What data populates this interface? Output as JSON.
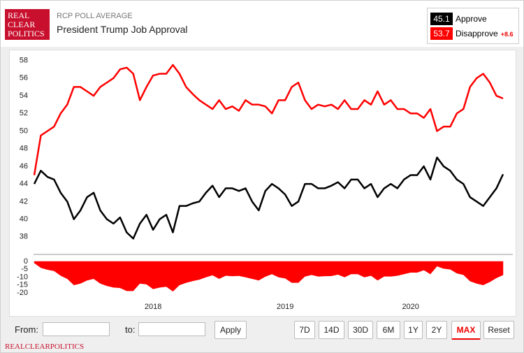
{
  "header": {
    "logo": [
      "REAL",
      "CLEAR",
      "POLITICS"
    ],
    "subtitle": "RCP POLL AVERAGE",
    "title": "President Trump Job Approval"
  },
  "chart_data": {
    "type": "line",
    "categories": [
      null,
      null,
      null,
      null,
      null,
      null,
      null,
      null,
      null,
      null,
      null,
      null,
      null,
      null,
      null,
      null,
      null,
      null,
      "2018",
      null,
      null,
      null,
      null,
      null,
      null,
      null,
      null,
      null,
      null,
      null,
      null,
      null,
      null,
      null,
      null,
      null,
      null,
      null,
      "2019",
      null,
      null,
      null,
      null,
      null,
      null,
      null,
      null,
      null,
      null,
      null,
      null,
      null,
      null,
      null,
      null,
      null,
      null,
      "2020",
      null,
      null,
      null,
      null,
      null,
      null,
      null,
      null,
      null,
      null,
      null,
      null,
      null,
      null
    ],
    "ylim": [
      36,
      59
    ],
    "yticks": [
      38,
      40,
      42,
      44,
      46,
      48,
      50,
      52,
      54,
      56,
      58
    ],
    "y2lim": [
      -23,
      2
    ],
    "y2ticks": [
      0,
      -5,
      -10,
      -15,
      -20
    ],
    "spread_label": "+8.6",
    "series": [
      {
        "name": "Approve",
        "color": "#000000",
        "latest": 45.1,
        "values": [
          44,
          45.5,
          44.8,
          44.5,
          43,
          42,
          40,
          41,
          42.5,
          43,
          41,
          40,
          39.5,
          40.2,
          38.5,
          37.8,
          39.5,
          40.5,
          38.8,
          40,
          40.5,
          38.5,
          41.5,
          41.5,
          41.8,
          42,
          43,
          43.8,
          42.5,
          43.5,
          43.5,
          43.2,
          43.5,
          42,
          41,
          43.2,
          44,
          43.5,
          42.8,
          41.5,
          42,
          44,
          44,
          43.5,
          43.5,
          43.8,
          44.2,
          43.5,
          44.5,
          44.5,
          43.5,
          44,
          42.5,
          43.5,
          44,
          43.5,
          44.5,
          45,
          45,
          46,
          44.5,
          47,
          46,
          45.5,
          44.5,
          44,
          42.5,
          42,
          41.5,
          42.5,
          43.5,
          45.1
        ]
      },
      {
        "name": "Disapprove",
        "color": "#ff0000",
        "latest": 53.7,
        "values": [
          45,
          49.5,
          50,
          50.5,
          52,
          53,
          55,
          55,
          54.5,
          54,
          55,
          55.5,
          56,
          57,
          57.2,
          56.5,
          53.5,
          55,
          56.3,
          56.5,
          56.5,
          57.5,
          56.5,
          55,
          54.2,
          53.5,
          53,
          52.5,
          53.5,
          52.5,
          52.8,
          52.3,
          53.5,
          53,
          53,
          52.8,
          52,
          53.5,
          53.5,
          55,
          55.5,
          53.5,
          52.5,
          53,
          52.8,
          53,
          52.5,
          53.5,
          52.5,
          52.5,
          53.5,
          53,
          54.5,
          53,
          53.5,
          52.5,
          52.5,
          52,
          52,
          51.5,
          52.5,
          50,
          50.5,
          50.5,
          52,
          52.5,
          55,
          56,
          56.5,
          55.5,
          54,
          53.7
        ]
      },
      {
        "type": "area",
        "axis": "y2",
        "color": "#ff0000",
        "values": [
          -1,
          -4,
          -5.2,
          -6,
          -9,
          -11,
          -15,
          -14,
          -12,
          -11,
          -14,
          -15.5,
          -16.5,
          -16.8,
          -18.7,
          -18.7,
          -14,
          -14.5,
          -17.5,
          -16.5,
          -16,
          -19,
          -15,
          -13.5,
          -12.4,
          -11.5,
          -10,
          -8.7,
          -11,
          -9,
          -9.3,
          -9.1,
          -10,
          -11,
          -12,
          -9.6,
          -8,
          -10,
          -10.7,
          -13.5,
          -13.5,
          -9.5,
          -8.5,
          -9.5,
          -9.3,
          -9.2,
          -8.3,
          -10,
          -8,
          -8,
          -10,
          -9,
          -12,
          -9.5,
          -9.5,
          -9,
          -8,
          -7,
          -7,
          -5.5,
          -8,
          -3,
          -4.5,
          -5,
          -7.5,
          -8.5,
          -12.5,
          -14,
          -15,
          -13,
          -10.5,
          -8.6
        ]
      }
    ]
  },
  "controls": {
    "from": "From:",
    "to": "to:",
    "apply": "Apply",
    "ranges": [
      "7D",
      "14D",
      "30D",
      "6M",
      "1Y",
      "2Y",
      "MAX",
      "Reset"
    ],
    "active": "MAX"
  },
  "footer": "REALCLEARPOLITICS"
}
